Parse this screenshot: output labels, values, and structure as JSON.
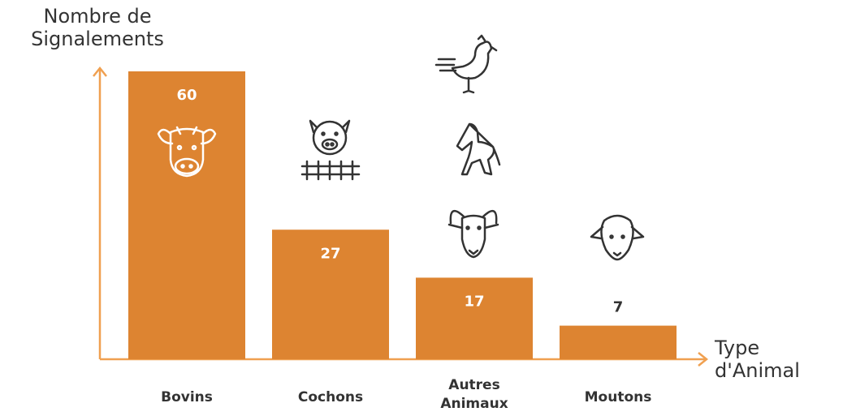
{
  "chart_data": {
    "type": "bar",
    "y_label": "Nombre de Signalements",
    "x_label": "Type d'Animal",
    "categories": [
      "Bovins",
      "Cochons",
      "Autres Animaux",
      "Moutons"
    ],
    "values": [
      60,
      27,
      17,
      7
    ],
    "color": "#dd8431",
    "ylim": [
      0,
      60
    ]
  }
}
